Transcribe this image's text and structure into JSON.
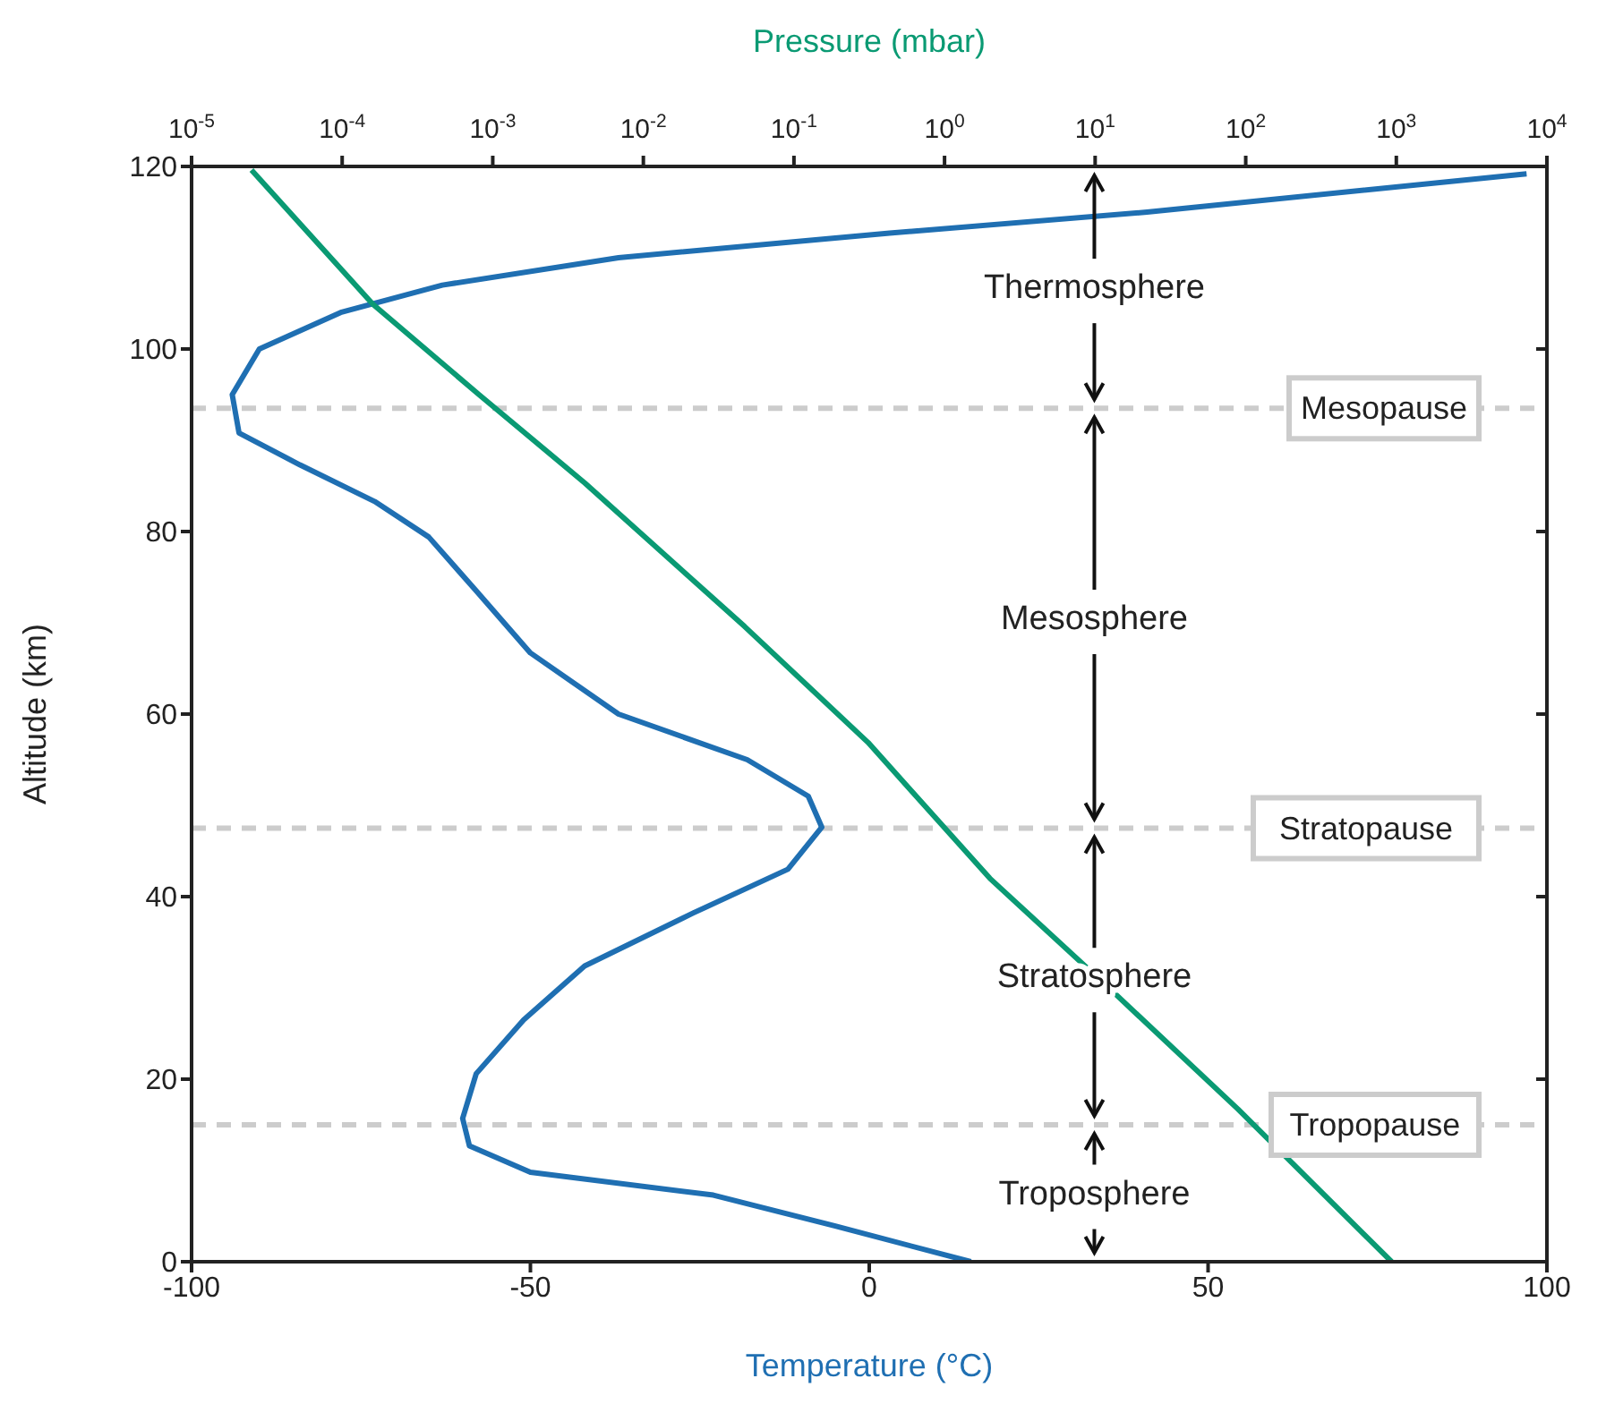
{
  "chart_data": {
    "type": "line",
    "xlabel": "Temperature (°C)",
    "x2label": "Pressure (mbar)",
    "ylabel": "Altitude (km)",
    "xlim": [
      -100,
      100
    ],
    "xticks": [
      -100,
      -50,
      0,
      50,
      100
    ],
    "ylim": [
      0,
      120
    ],
    "yticks": [
      0,
      20,
      40,
      60,
      80,
      100,
      120
    ],
    "x2lim": [
      1e-05,
      10000
    ],
    "log": "x2",
    "x2ticks": [
      {
        "value": 1e-05,
        "label": "10$^{-5}$"
      },
      {
        "value": 0.0001,
        "label": "10$^{-4}$"
      },
      {
        "value": 0.001,
        "label": "10$^{-3}$"
      },
      {
        "value": 0.01,
        "label": "10$^{-2}$"
      },
      {
        "value": 0.1,
        "label": "10$^{-1}$"
      },
      {
        "value": 1,
        "label": "10$^{0}$"
      },
      {
        "value": 10,
        "label": "10$^{1}$"
      },
      {
        "value": 100,
        "label": "10$^{2}$"
      },
      {
        "value": 1000,
        "label": "10$^{3}$"
      },
      {
        "value": 10000,
        "label": "10$^{4}$"
      }
    ],
    "marker": "none",
    "line_style": "solid",
    "series": [
      {
        "color": "#1f6fb2",
        "x": [
          15,
          -5,
          -23,
          -50,
          -59,
          -60,
          -58,
          -51,
          -42,
          -26,
          -12,
          -7,
          -9,
          -18,
          -37,
          -50,
          -58,
          -65,
          -73,
          -84,
          -93,
          -94,
          -90,
          -78,
          -63,
          -37,
          3,
          41,
          97
        ],
        "values": [
          0,
          3.9,
          7.3,
          9.8,
          12.7,
          15.7,
          20.6,
          26.5,
          32.4,
          38.2,
          43,
          47.6,
          51,
          55,
          60,
          66.7,
          73.5,
          79.4,
          83.3,
          87.3,
          90.8,
          95,
          100,
          104,
          107,
          110,
          112.7,
          115,
          119.2
        ]
      },
      {
        "color": "#0a9a73",
        "axis": "x2",
        "x": [
          930,
          89,
          13.5,
          2,
          0.31,
          0.047,
          0.0041,
          0.00081,
          0.00016,
          2.5e-05
        ],
        "values": [
          0,
          16.7,
          29.4,
          42,
          56.9,
          69.6,
          85.3,
          95,
          104.9,
          119.6
        ]
      }
    ],
    "ref_lines": [
      {
        "axis": "y",
        "value": 93.5,
        "label": "Mesopause",
        "color": "#cccccc",
        "line_style": "dashed"
      },
      {
        "axis": "y",
        "value": 47.5,
        "label": "Stratopause",
        "color": "#cccccc",
        "line_style": "dashed"
      },
      {
        "axis": "y",
        "value": 15,
        "label": "Tropopause",
        "color": "#cccccc",
        "line_style": "dashed"
      }
    ],
    "annotations": [
      "Thermosphere",
      "Mesosphere",
      "Stratosphere",
      "Troposphere"
    ]
  }
}
